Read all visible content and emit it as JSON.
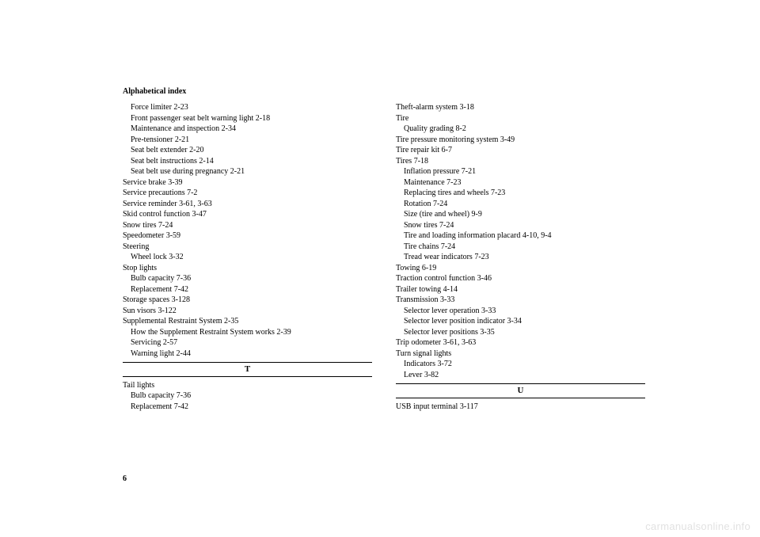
{
  "header": "Alphabetical index",
  "pagenum": "6",
  "watermark": "carmanualsonline.info",
  "left": [
    {
      "t": "Force limiter   2-23",
      "i": 1
    },
    {
      "t": "Front passenger seat belt warning light   2-18",
      "i": 1
    },
    {
      "t": "Maintenance and inspection   2-34",
      "i": 1
    },
    {
      "t": "Pre-tensioner   2-21",
      "i": 1
    },
    {
      "t": "Seat belt extender   2-20",
      "i": 1
    },
    {
      "t": "Seat belt instructions   2-14",
      "i": 1
    },
    {
      "t": "Seat belt use during pregnancy   2-21",
      "i": 1
    },
    {
      "t": "Service brake   3-39",
      "i": 0
    },
    {
      "t": "Service precautions   7-2",
      "i": 0
    },
    {
      "t": "Service reminder   3-61,  3-63",
      "i": 0
    },
    {
      "t": "Skid control function   3-47",
      "i": 0
    },
    {
      "t": "Snow tires   7-24",
      "i": 0
    },
    {
      "t": "Speedometer   3-59",
      "i": 0
    },
    {
      "t": "Steering",
      "i": 0
    },
    {
      "t": "Wheel lock   3-32",
      "i": 1
    },
    {
      "t": "Stop lights",
      "i": 0
    },
    {
      "t": "Bulb capacity   7-36",
      "i": 1
    },
    {
      "t": "Replacement   7-42",
      "i": 1
    },
    {
      "t": "Storage spaces   3-128",
      "i": 0
    },
    {
      "t": "Sun visors   3-122",
      "i": 0
    },
    {
      "t": "Supplemental Restraint System   2-35",
      "i": 0
    },
    {
      "t": "How the Supplement Restraint System works   2-39",
      "i": 1
    },
    {
      "t": "Servicing   2-57",
      "i": 1
    },
    {
      "t": "Warning light   2-44",
      "i": 1
    }
  ],
  "left_letter": "T",
  "left_after": [
    {
      "t": "Tail lights",
      "i": 0
    },
    {
      "t": "Bulb capacity   7-36",
      "i": 1
    },
    {
      "t": "Replacement   7-42",
      "i": 1
    }
  ],
  "right": [
    {
      "t": "Theft-alarm system   3-18",
      "i": 0
    },
    {
      "t": "Tire",
      "i": 0
    },
    {
      "t": "Quality grading   8-2",
      "i": 1
    },
    {
      "t": "Tire pressure monitoring system   3-49",
      "i": 0
    },
    {
      "t": "Tire repair kit   6-7",
      "i": 0
    },
    {
      "t": "Tires   7-18",
      "i": 0
    },
    {
      "t": "Inflation pressure   7-21",
      "i": 1
    },
    {
      "t": "Maintenance   7-23",
      "i": 1
    },
    {
      "t": "Replacing tires and wheels   7-23",
      "i": 1
    },
    {
      "t": "Rotation   7-24",
      "i": 1
    },
    {
      "t": "Size (tire and wheel)   9-9",
      "i": 1
    },
    {
      "t": "Snow tires   7-24",
      "i": 1
    },
    {
      "t": "Tire and loading information placard   4-10,  9-4",
      "i": 1
    },
    {
      "t": "Tire chains   7-24",
      "i": 1
    },
    {
      "t": "Tread wear indicators   7-23",
      "i": 1
    },
    {
      "t": "Towing   6-19",
      "i": 0
    },
    {
      "t": "Traction control function   3-46",
      "i": 0
    },
    {
      "t": "Trailer towing   4-14",
      "i": 0
    },
    {
      "t": "Transmission   3-33",
      "i": 0
    },
    {
      "t": "Selector lever operation   3-33",
      "i": 1
    },
    {
      "t": "Selector lever position indicator   3-34",
      "i": 1
    },
    {
      "t": "Selector lever positions   3-35",
      "i": 1
    },
    {
      "t": "Trip odometer   3-61,  3-63",
      "i": 0
    },
    {
      "t": "Turn signal lights",
      "i": 0
    },
    {
      "t": "Indicators   3-72",
      "i": 1
    },
    {
      "t": "Lever   3-82",
      "i": 1
    }
  ],
  "right_letter": "U",
  "right_after": [
    {
      "t": "USB input terminal   3-117",
      "i": 0
    }
  ]
}
